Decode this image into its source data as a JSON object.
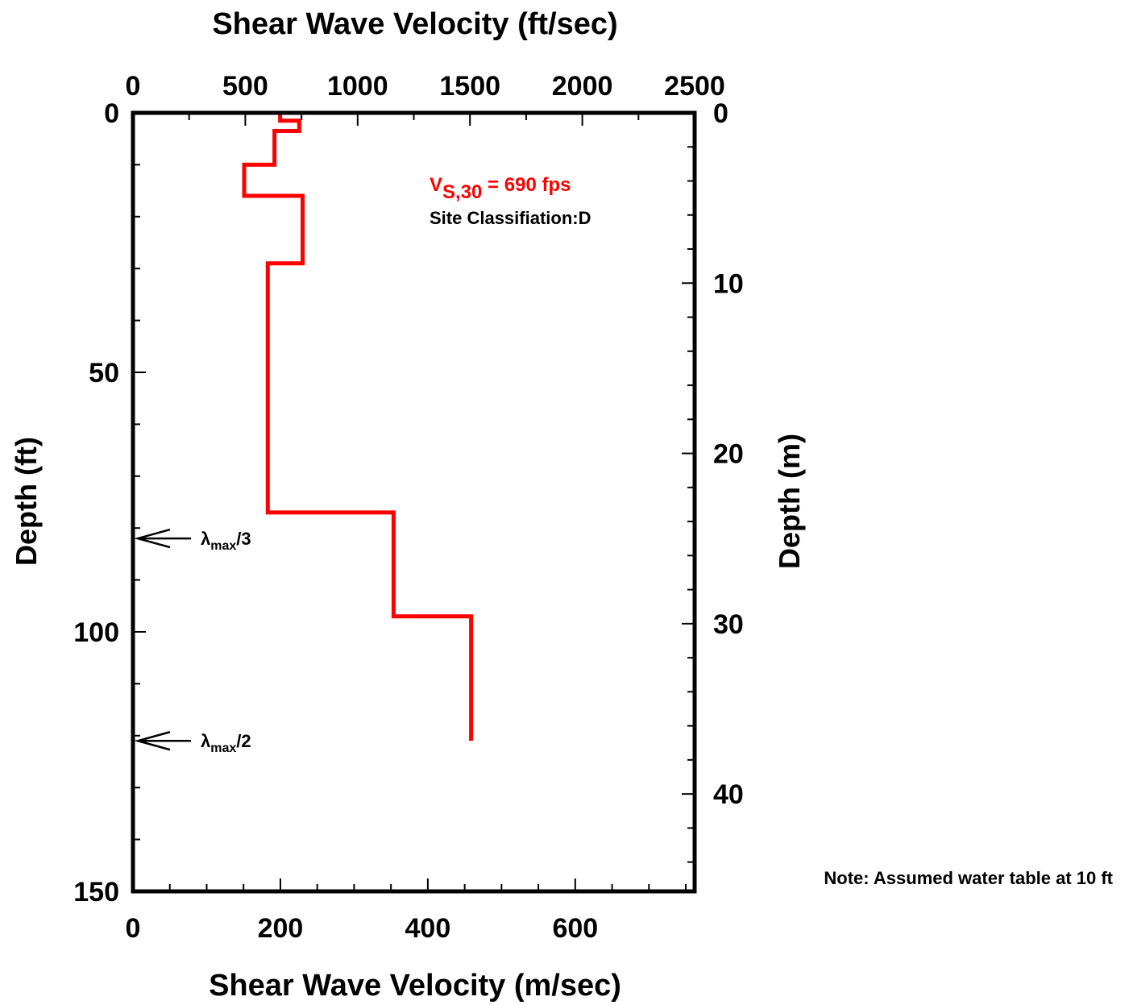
{
  "chart_data": {
    "type": "line",
    "title": "",
    "x_top": {
      "label": "Shear Wave Velocity (ft/sec)",
      "range": [
        0,
        2500
      ],
      "ticks": [
        0,
        500,
        1000,
        1500,
        2000,
        2500
      ]
    },
    "x_bottom": {
      "label": "Shear Wave Velocity (m/sec)",
      "range": [
        0,
        762
      ],
      "ticks": [
        0,
        200,
        400,
        600
      ]
    },
    "y_left": {
      "label": "Depth (ft)",
      "range": [
        0,
        150
      ],
      "ticks": [
        0,
        50,
        100,
        150
      ],
      "inverted": true
    },
    "y_right": {
      "label": "Depth (m)",
      "range": [
        0,
        45.72
      ],
      "ticks": [
        0,
        10,
        20,
        30,
        40
      ],
      "inverted": true
    },
    "grid": false,
    "series": [
      {
        "color": "#ff0000",
        "units": {
          "x": "ft/sec",
          "y": "ft"
        },
        "points": [
          [
            655,
            0
          ],
          [
            655,
            1.5
          ],
          [
            740,
            1.5
          ],
          [
            740,
            3.5
          ],
          [
            630,
            3.5
          ],
          [
            630,
            10
          ],
          [
            495,
            10
          ],
          [
            495,
            16
          ],
          [
            755,
            16
          ],
          [
            755,
            29
          ],
          [
            600,
            29
          ],
          [
            600,
            77
          ],
          [
            1160,
            77
          ],
          [
            1160,
            97
          ],
          [
            1505,
            97
          ],
          [
            1505,
            121
          ]
        ]
      }
    ],
    "annotations": {
      "vs30_symbol": "V",
      "vs30_subscript": "S,30",
      "vs30_value": " = 690 fps",
      "site_class": "Site Classifiation:D",
      "note": "Note: Assumed water table at 10 ft",
      "color": "#ff0000"
    },
    "arrows": [
      {
        "depth_ft": 82,
        "symbol": "λ",
        "subscript": "max",
        "suffix": "/3"
      },
      {
        "depth_ft": 121,
        "symbol": "λ",
        "subscript": "max",
        "suffix": "/2"
      }
    ]
  }
}
